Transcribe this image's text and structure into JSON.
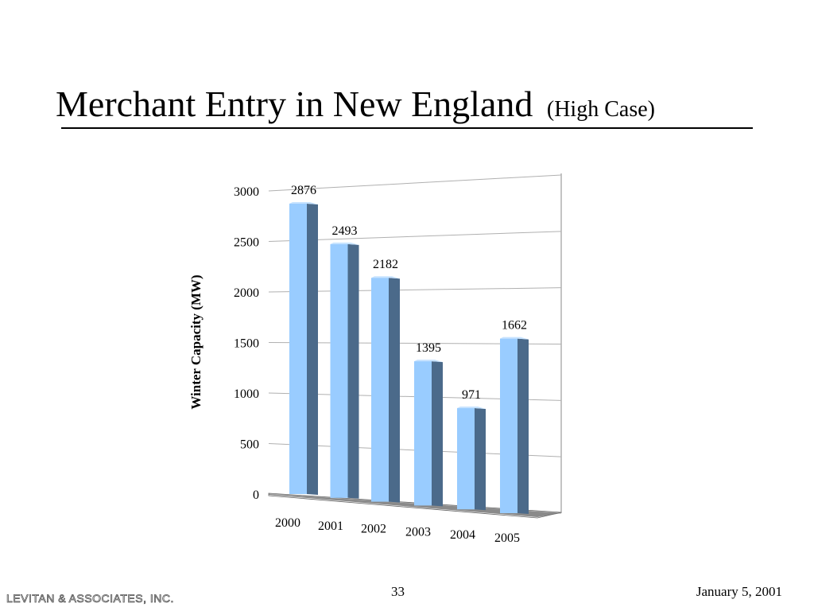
{
  "slide": {
    "title": "Merchant Entry in New England",
    "subtitle": "(High Case)",
    "page_number": "33",
    "date": "January 5, 2001",
    "company": "Levitan & Associates, Inc."
  },
  "colors": {
    "bar_front": "#99ccff",
    "bar_side": "#4b6a8a",
    "floor": "#8a8a8a",
    "gridline": "#b0b0b0"
  },
  "chart_data": {
    "type": "bar",
    "style": "3d-perspective",
    "categories": [
      "2000",
      "2001",
      "2002",
      "2003",
      "2004",
      "2005"
    ],
    "values": [
      2876,
      2493,
      2182,
      1395,
      971,
      1662
    ],
    "data_labels": [
      "2876",
      "2493",
      "2182",
      "1395",
      "971",
      "1662"
    ],
    "title": "",
    "xlabel": "",
    "ylabel": "Winter Capacity (MW)",
    "ylim": [
      0,
      3000
    ],
    "yticks": [
      "0",
      "500",
      "1000",
      "1500",
      "2000",
      "2500",
      "3000"
    ],
    "grid": true,
    "legend": "none"
  }
}
